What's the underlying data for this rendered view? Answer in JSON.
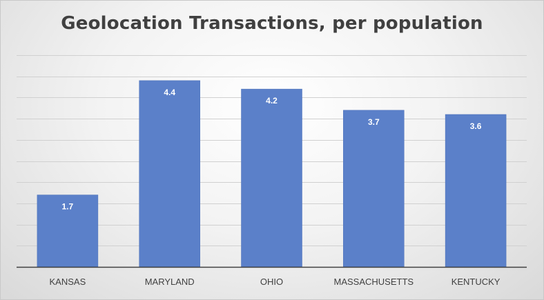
{
  "chart_data": {
    "type": "bar",
    "title": "Geolocation Transactions, per population",
    "categories": [
      "KANSAS",
      "MARYLAND",
      "OHIO",
      "MASSACHUSETTS",
      "KENTUCKY"
    ],
    "values": [
      1.7,
      4.4,
      4.2,
      3.7,
      3.6
    ],
    "data_labels": [
      "1.7",
      "4.4",
      "4.2",
      "3.7",
      "3.6"
    ],
    "xlabel": "",
    "ylabel": "",
    "ylim": [
      0,
      5
    ],
    "grid": true,
    "gridline_step": 0.5,
    "legend": "none",
    "colors": {
      "bar": "#5b80c9",
      "bar_edge": "#4a6fb8",
      "grid": "#d0d0d0",
      "axis": "#404040"
    }
  }
}
